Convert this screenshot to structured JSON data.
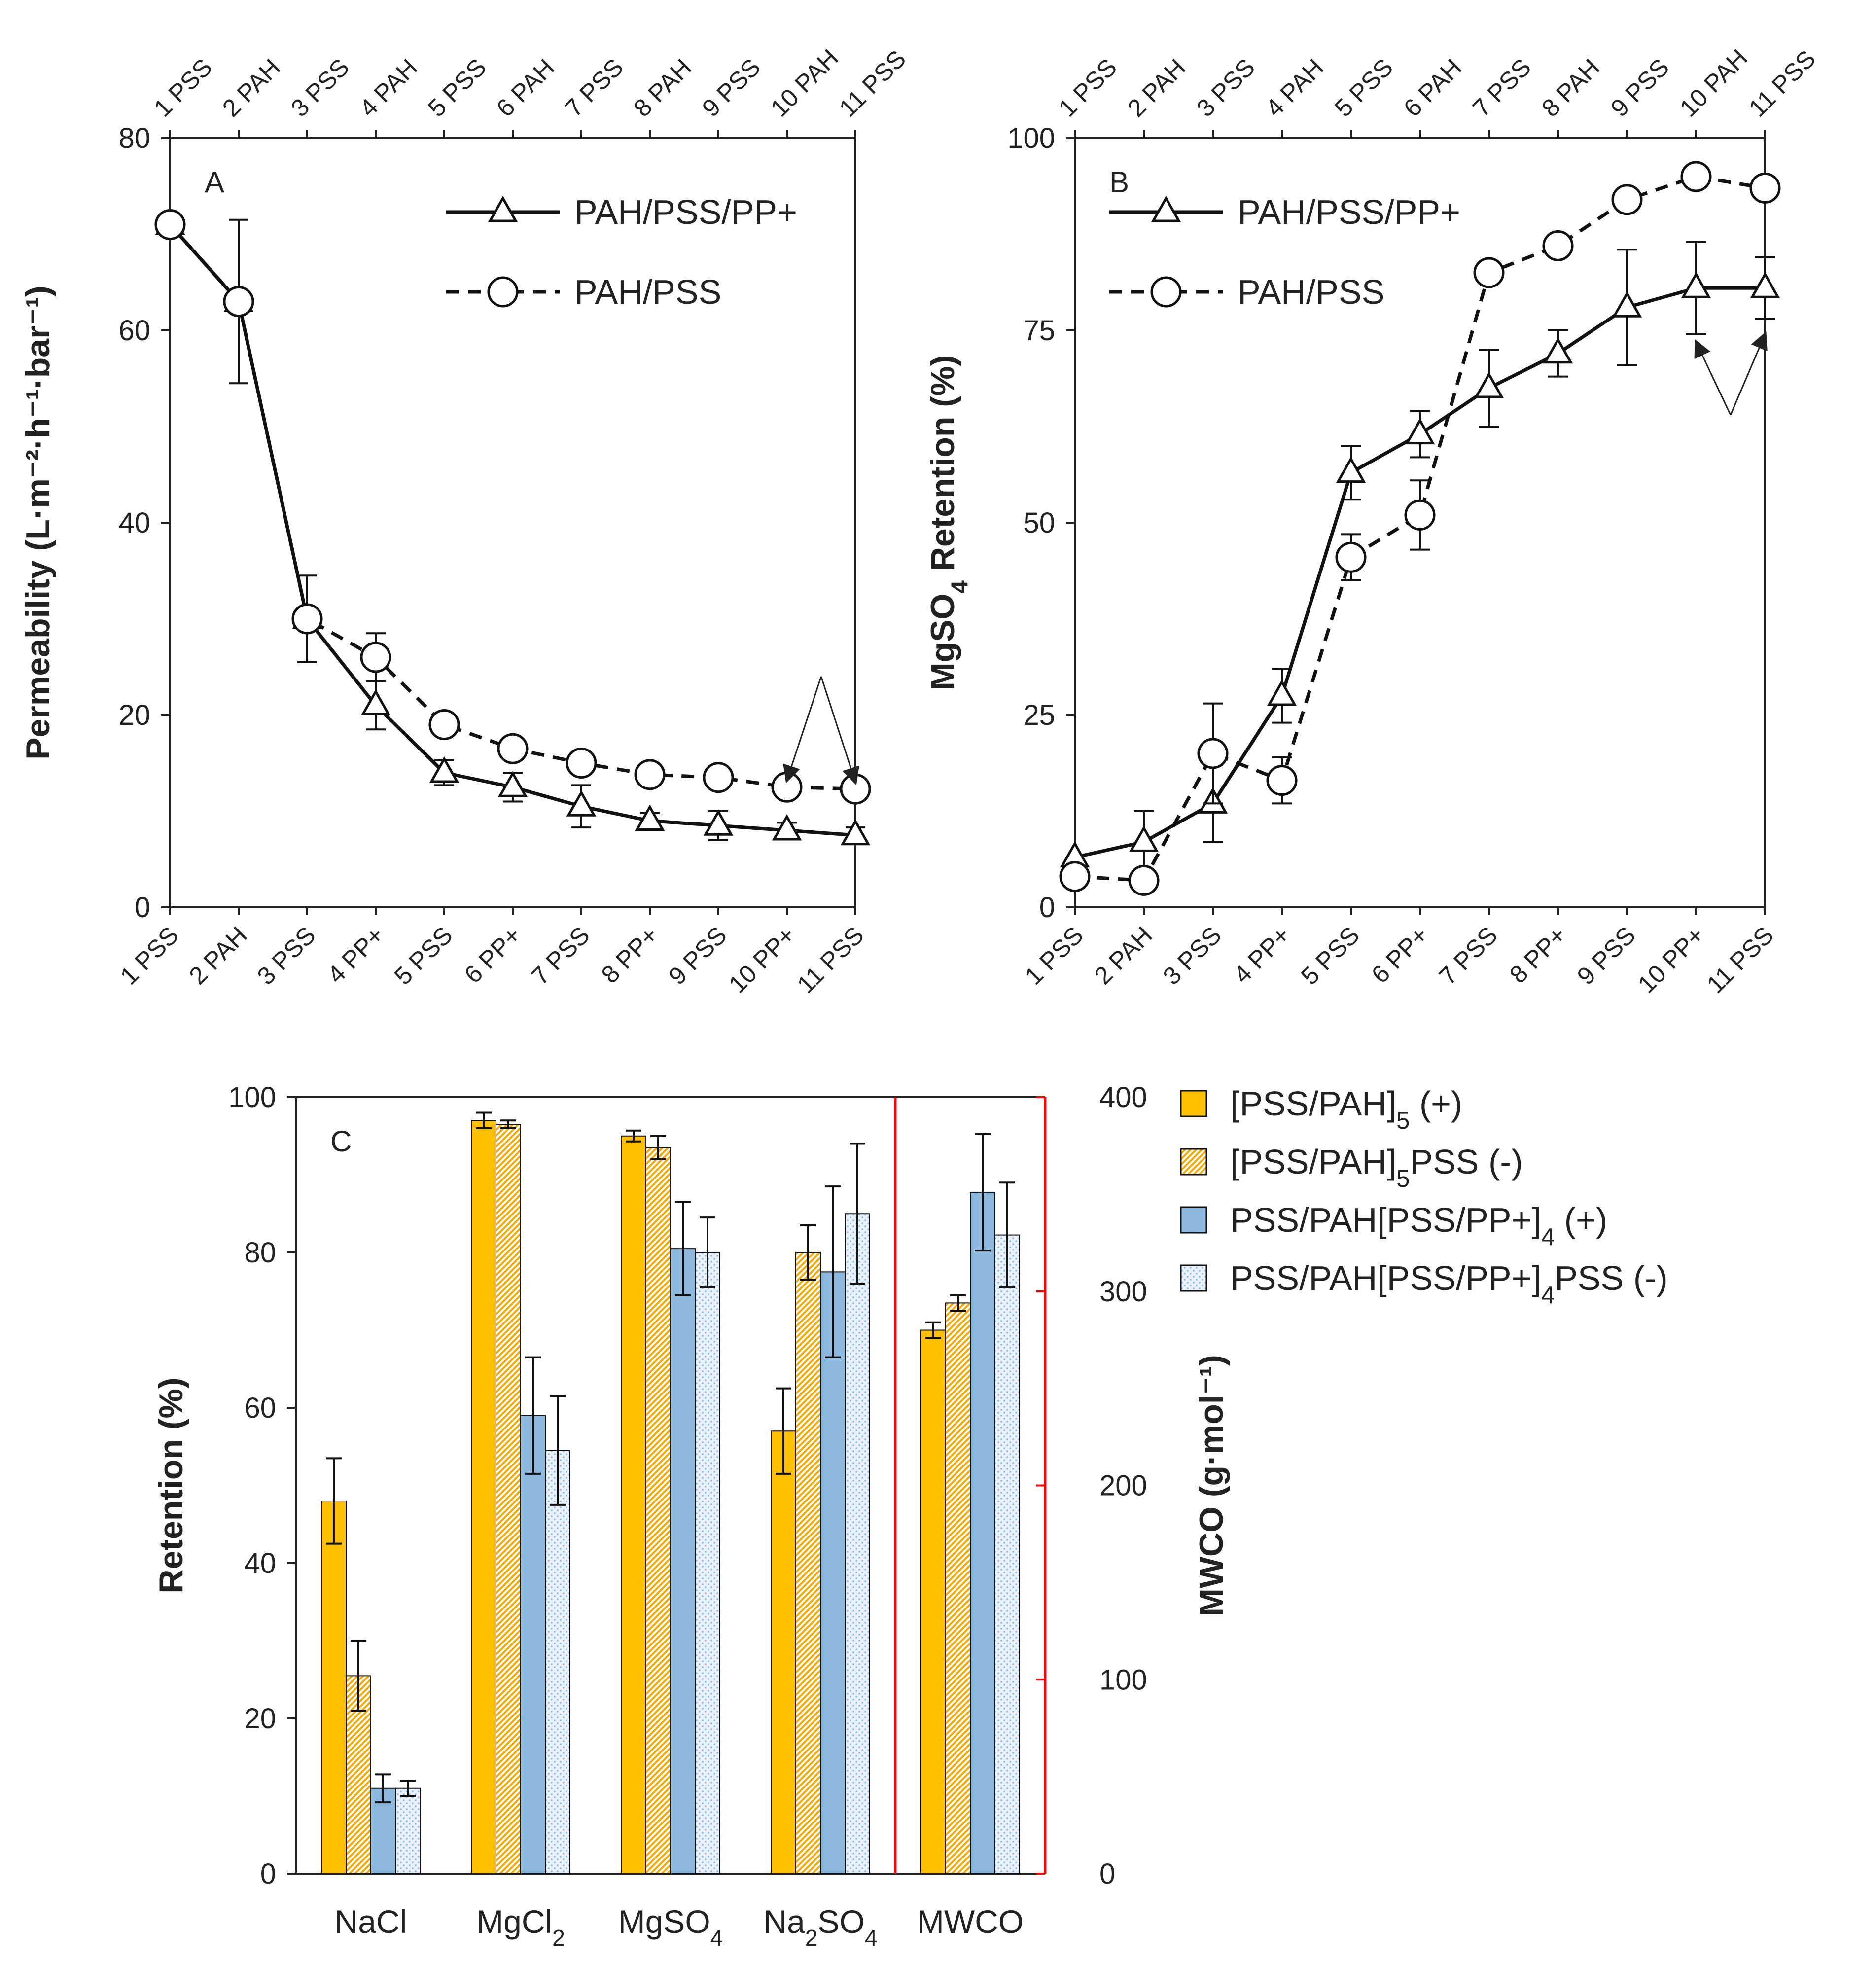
{
  "chart_data": [
    {
      "panel": "A",
      "type": "line",
      "panel_label": "A",
      "ylabel": "Permeability (L·m⁻²·h⁻¹·bar⁻¹)",
      "ylim": [
        0,
        80
      ],
      "yticks": [
        "0",
        "20",
        "40",
        "60",
        "80"
      ],
      "top_ticks": [
        "1 PSS",
        "2 PAH",
        "3 PSS",
        "4 PAH",
        "5 PSS",
        "6 PAH",
        "7 PSS",
        "8 PAH",
        "9 PSS",
        "10 PAH",
        "11 PSS"
      ],
      "bottom_ticks": [
        "1 PSS",
        "2 PAH",
        "3 PSS",
        "4 PP+",
        "5 PSS",
        "6 PP+",
        "7 PSS",
        "8 PP+",
        "9 PSS",
        "10 PP+",
        "11 PSS"
      ],
      "series": [
        {
          "name": "PAH/PSS/PP+",
          "marker": "triangle",
          "line": "solid",
          "values": [
            71,
            63,
            30,
            21,
            14,
            12.5,
            10.5,
            9,
            8.5,
            8,
            7.5
          ],
          "errors": [
            0,
            8.5,
            4.5,
            2.5,
            1.3,
            1.5,
            2.2,
            0.8,
            1.5,
            0.8,
            0.8
          ]
        },
        {
          "name": "PAH/PSS",
          "marker": "circle",
          "line": "dashed",
          "values": [
            71,
            63,
            30,
            26,
            19,
            16.5,
            15,
            13.8,
            13.5,
            12.5,
            12.3
          ],
          "errors": [
            0,
            0,
            0,
            2.5,
            0,
            0,
            0,
            0,
            0,
            0,
            0
          ]
        }
      ],
      "arrows": [
        [
          10,
          13.2
        ],
        [
          11,
          13.0
        ]
      ],
      "arrow_origin": [
        10.5,
        24
      ]
    },
    {
      "panel": "B",
      "type": "line",
      "panel_label": "B",
      "ylabel_main": "MgSO",
      "ylabel_sub": "4",
      "ylabel_rest": " Retention (%)",
      "ylim": [
        0,
        100
      ],
      "yticks": [
        "0",
        "25",
        "50",
        "75",
        "100"
      ],
      "top_ticks": [
        "1 PSS",
        "2 PAH",
        "3 PSS",
        "4 PAH",
        "5 PSS",
        "6 PAH",
        "7 PSS",
        "8 PAH",
        "9 PSS",
        "10 PAH",
        "11 PSS"
      ],
      "bottom_ticks": [
        "1 PSS",
        "2 PAH",
        "3 PSS",
        "4 PP+",
        "5 PSS",
        "6 PP+",
        "7 PSS",
        "8 PP+",
        "9 PSS",
        "10 PP+",
        "11 PSS"
      ],
      "series": [
        {
          "name": "PAH/PSS/PP+",
          "marker": "triangle",
          "line": "solid",
          "values": [
            6.5,
            8.5,
            13.5,
            27.5,
            56.5,
            61.5,
            67.5,
            72,
            78,
            80.5,
            80.5
          ],
          "errors": [
            0,
            4,
            5,
            3.5,
            3.5,
            3,
            5,
            3,
            7.5,
            6,
            4
          ]
        },
        {
          "name": "PAH/PSS",
          "marker": "circle",
          "line": "dashed",
          "values": [
            4,
            3.5,
            20,
            16.5,
            45.5,
            51,
            82.5,
            86,
            92,
            95,
            93.5
          ],
          "errors": [
            0,
            0,
            6.5,
            3,
            3,
            4.5,
            0,
            0,
            0,
            0,
            0
          ]
        }
      ],
      "arrows": [
        [
          10,
          73.5
        ],
        [
          11,
          74.5
        ]
      ],
      "arrow_origin": [
        10.5,
        64
      ]
    },
    {
      "panel": "C",
      "type": "bar",
      "panel_label": "C",
      "ylabel": "Retention (%)",
      "ylabel_right": "MWCO (g·mol⁻¹)",
      "ylim": [
        0,
        100
      ],
      "ylim_right": [
        0,
        400
      ],
      "yticks": [
        "0",
        "20",
        "40",
        "60",
        "80",
        "100"
      ],
      "yticks_right": [
        "0",
        "100",
        "200",
        "300",
        "400"
      ],
      "categories": [
        {
          "main": "NaCl",
          "sub": "",
          "rest": ""
        },
        {
          "main": "MgCl",
          "sub": "2",
          "rest": ""
        },
        {
          "main": "MgSO",
          "sub": "4",
          "rest": ""
        },
        {
          "main": "Na",
          "sub": "2",
          "rest": "SO",
          "sub2": "4"
        },
        {
          "main": "MWCO",
          "sub": "",
          "rest": ""
        }
      ],
      "series": [
        {
          "legend_main": "[PSS/PAH]",
          "legend_sub": "5",
          "legend_rest": " (+)",
          "style": "solid-orange",
          "values": [
            48,
            97,
            95,
            57,
            280
          ],
          "errors": [
            5.5,
            1,
            0.7,
            5.5,
            4
          ]
        },
        {
          "legend_main": "[PSS/PAH]",
          "legend_sub": "5",
          "legend_rest": "PSS (-)",
          "style": "hatch-orange",
          "values": [
            25.5,
            96.5,
            93.5,
            80,
            294
          ],
          "errors": [
            4.5,
            0.5,
            1.5,
            3.5,
            4
          ]
        },
        {
          "legend_main": "PSS/PAH[PSS/PP+]",
          "legend_sub": "4",
          "legend_rest": " (+)",
          "style": "solid-blue",
          "values": [
            11,
            59,
            80.5,
            77.5,
            351
          ],
          "errors": [
            1.8,
            7.5,
            6,
            11,
            30
          ]
        },
        {
          "legend_main": "PSS/PAH[PSS/PP+]",
          "legend_sub": "4",
          "legend_rest": "PSS (-)",
          "style": "dots-blue",
          "values": [
            11,
            54.5,
            80,
            85,
            329
          ],
          "errors": [
            1,
            7,
            4.5,
            9,
            27
          ]
        }
      ],
      "colors": {
        "orange": "#FFC000",
        "orange_dark": "#F2A900",
        "blue": "#8DB9DF",
        "blue_light": "#DDEBF7",
        "red": "#FF0000"
      }
    }
  ]
}
